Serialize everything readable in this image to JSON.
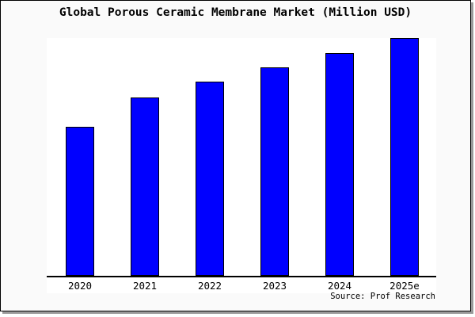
{
  "title": "Global Porous Ceramic Membrane Market (Million USD)",
  "source": "Source: Prof Research",
  "colors": {
    "bar_fill": "#0000ff",
    "bar_border": "#000000",
    "card_background": "#fafafa",
    "plot_background": "#ffffff",
    "axis": "#000000",
    "page_background": "#ffffff",
    "card_shadow": "#999999",
    "text": "#000000"
  },
  "chart_data": {
    "type": "bar",
    "title": "Global Porous Ceramic Membrane Market (Million USD)",
    "categories": [
      "2020",
      "2021",
      "2022",
      "2023",
      "2024",
      "2025e"
    ],
    "values": [
      188,
      225,
      245,
      263,
      281,
      300
    ],
    "value_basis": "estimated relative bar heights in px; y-axis has no labels",
    "xlabel": "",
    "ylabel": "",
    "ylim": [
      0,
      300
    ],
    "grid": false,
    "legend": false,
    "y_axis_visible": false,
    "source_note": "Source: Prof Research"
  }
}
